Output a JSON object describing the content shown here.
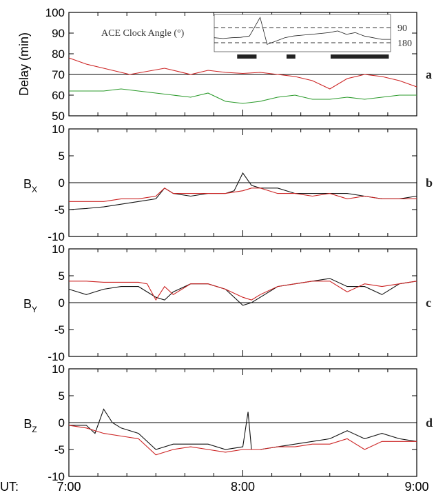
{
  "chart_data": [
    {
      "panel": "a",
      "type": "line",
      "ylabel": "Delay (min)",
      "ylim": [
        50,
        100
      ],
      "yticks": [
        50,
        60,
        70,
        80,
        90,
        100
      ],
      "reference_line": 70,
      "series": [
        {
          "color": "#cc2222",
          "x": [
            0,
            0.1,
            0.2,
            0.35,
            0.55,
            0.7,
            0.8,
            0.9,
            1.0,
            1.1,
            1.2,
            1.3,
            1.4,
            1.5,
            1.6,
            1.7,
            1.8,
            1.9,
            2.0
          ],
          "y": [
            78,
            75,
            73,
            70,
            73,
            70,
            72,
            71,
            70.5,
            71,
            70,
            69,
            67,
            63,
            68,
            70,
            69,
            67,
            64
          ]
        },
        {
          "color": "#2a9a2a",
          "x": [
            0,
            0.1,
            0.2,
            0.3,
            0.4,
            0.5,
            0.6,
            0.7,
            0.8,
            0.9,
            1.0,
            1.1,
            1.2,
            1.3,
            1.4,
            1.5,
            1.6,
            1.7,
            1.8,
            1.9,
            2.0
          ],
          "y": [
            62,
            62,
            62,
            63,
            62,
            61,
            60,
            59,
            61,
            57,
            56,
            57,
            59,
            60,
            58,
            58,
            59,
            58,
            59,
            60,
            60
          ]
        }
      ],
      "inset": {
        "title": "ACE Clock Angle (°)",
        "labels": [
          "90",
          "180"
        ],
        "dashed_lines": [
          90,
          180
        ],
        "series": {
          "x": [
            0,
            0.05,
            0.1,
            0.15,
            0.2,
            0.26,
            0.3,
            0.35,
            0.4,
            0.45,
            0.5,
            0.55,
            0.6,
            0.65,
            0.7,
            0.75,
            0.8,
            0.85,
            0.9,
            0.95,
            1.0
          ],
          "y": [
            150,
            155,
            150,
            148,
            140,
            30,
            190,
            170,
            150,
            140,
            135,
            130,
            125,
            120,
            110,
            130,
            120,
            140,
            150,
            160,
            160
          ]
        },
        "bars": [
          [
            0.13,
            0.24
          ],
          [
            0.41,
            0.46
          ],
          [
            0.66,
            0.99
          ]
        ]
      }
    },
    {
      "panel": "b",
      "type": "line",
      "ylabel": "B",
      "ylabel_sub": "X",
      "ylim": [
        -10,
        10
      ],
      "yticks": [
        10,
        5,
        0,
        -5,
        -10
      ],
      "reference_line": 0,
      "series": [
        {
          "color": "#111111",
          "x": [
            0,
            0.1,
            0.2,
            0.3,
            0.4,
            0.5,
            0.55,
            0.6,
            0.7,
            0.8,
            0.9,
            0.95,
            1.0,
            1.05,
            1.1,
            1.2,
            1.3,
            1.4,
            1.5,
            1.6,
            1.7,
            1.8,
            1.9,
            2.0
          ],
          "y": [
            -5,
            -4.8,
            -4.5,
            -4,
            -3.5,
            -3,
            -1,
            -2,
            -2.5,
            -2,
            -2,
            -1.5,
            1.8,
            -0.5,
            -1,
            -1,
            -2,
            -2,
            -2,
            -2,
            -2.5,
            -3,
            -3,
            -2.5
          ]
        },
        {
          "color": "#cc2222",
          "x": [
            0,
            0.1,
            0.2,
            0.3,
            0.4,
            0.5,
            0.55,
            0.6,
            0.7,
            0.8,
            0.9,
            1.0,
            1.05,
            1.1,
            1.2,
            1.3,
            1.4,
            1.5,
            1.6,
            1.7,
            1.8,
            1.9,
            2.0
          ],
          "y": [
            -3.5,
            -3.5,
            -3.5,
            -3,
            -3,
            -2.5,
            -1,
            -2,
            -2,
            -2,
            -2,
            -1.5,
            -1,
            -1,
            -2,
            -2,
            -2.5,
            -2,
            -3,
            -2.5,
            -3,
            -3,
            -3
          ]
        }
      ]
    },
    {
      "panel": "c",
      "type": "line",
      "ylabel": "B",
      "ylabel_sub": "Y",
      "ylim": [
        -10,
        10
      ],
      "yticks": [
        10,
        5,
        0,
        -5,
        -10
      ],
      "reference_line": 0,
      "series": [
        {
          "color": "#111111",
          "x": [
            0,
            0.05,
            0.1,
            0.15,
            0.2,
            0.3,
            0.4,
            0.5,
            0.55,
            0.6,
            0.7,
            0.8,
            0.9,
            1.0,
            1.05,
            1.1,
            1.2,
            1.3,
            1.4,
            1.5,
            1.6,
            1.7,
            1.8,
            1.9,
            2.0
          ],
          "y": [
            2.5,
            2,
            1.5,
            2,
            2.5,
            3,
            3,
            1,
            0.5,
            2,
            3.5,
            3.5,
            2.5,
            -0.5,
            0,
            1,
            3,
            3.5,
            4,
            4.5,
            3,
            3,
            1.5,
            3.5,
            4
          ]
        },
        {
          "color": "#cc2222",
          "x": [
            0,
            0.1,
            0.2,
            0.3,
            0.4,
            0.45,
            0.5,
            0.55,
            0.6,
            0.7,
            0.8,
            0.9,
            1.0,
            1.05,
            1.1,
            1.2,
            1.3,
            1.4,
            1.5,
            1.6,
            1.7,
            1.8,
            1.9,
            2.0
          ],
          "y": [
            4,
            4,
            3.8,
            3.8,
            3.8,
            3.5,
            0.5,
            3,
            1.5,
            3.5,
            3.5,
            2.5,
            1,
            0.5,
            1.5,
            3,
            3.5,
            4,
            4,
            2,
            3.5,
            3,
            3.5,
            4
          ]
        }
      ]
    },
    {
      "panel": "d",
      "type": "line",
      "ylabel": "B",
      "ylabel_sub": "Z",
      "ylim": [
        -10,
        10
      ],
      "yticks": [
        10,
        5,
        0,
        -5,
        -10
      ],
      "reference_line": 0,
      "series": [
        {
          "color": "#111111",
          "x": [
            0,
            0.1,
            0.15,
            0.2,
            0.25,
            0.3,
            0.4,
            0.5,
            0.6,
            0.7,
            0.8,
            0.9,
            1.0,
            1.03,
            1.05,
            1.1,
            1.2,
            1.3,
            1.4,
            1.5,
            1.6,
            1.7,
            1.8,
            1.9,
            2.0
          ],
          "y": [
            -0.5,
            -0.5,
            -2,
            2.5,
            0,
            -1,
            -2,
            -5,
            -4,
            -4,
            -4,
            -5,
            -4.5,
            2,
            -5,
            -5,
            -4.5,
            -4,
            -3.5,
            -3,
            -1.5,
            -3,
            -2,
            -3,
            -3.5
          ]
        },
        {
          "color": "#cc2222",
          "x": [
            0,
            0.1,
            0.2,
            0.3,
            0.4,
            0.5,
            0.6,
            0.7,
            0.8,
            0.9,
            1.0,
            1.1,
            1.2,
            1.3,
            1.4,
            1.5,
            1.6,
            1.7,
            1.8,
            1.9,
            2.0
          ],
          "y": [
            -0.5,
            -1,
            -2,
            -2.5,
            -3,
            -6,
            -5,
            -4.5,
            -5,
            -5.5,
            -5,
            -5,
            -4.5,
            -4.5,
            -4,
            -4,
            -3,
            -5,
            -3.5,
            -3.5,
            -3.5
          ]
        }
      ]
    }
  ],
  "x_axis": {
    "prefix": "UT:",
    "labels": [
      "7:00",
      "8:00",
      "9:00"
    ],
    "hours": [
      0,
      1,
      2
    ]
  }
}
